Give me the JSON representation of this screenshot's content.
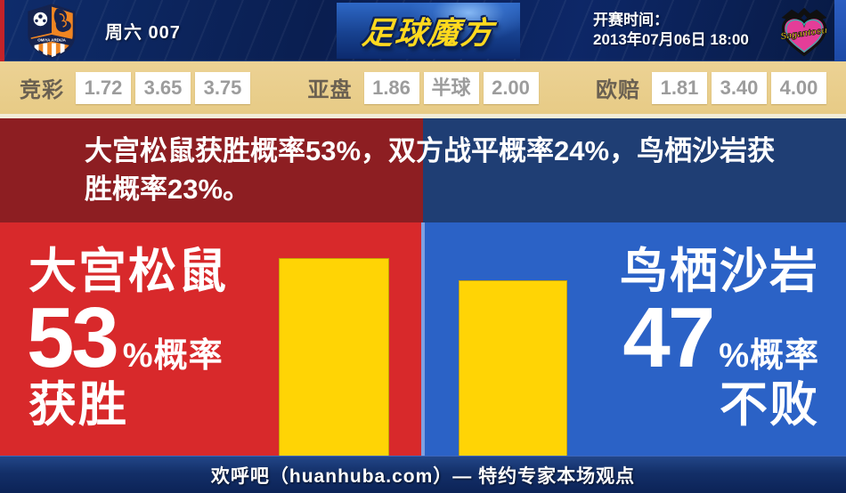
{
  "header": {
    "match_label": "周六 007",
    "site_logo": "足球魔方",
    "kickoff_label": "开赛时间：",
    "kickoff_time": "2013年07月06日 18:00",
    "home_team_crest": "omiya-ardija-crest",
    "away_team_crest": "sagan-tosu-crest",
    "away_crest_text": "Sagantosu",
    "home_crest_text": "OMIYA ARDIJA"
  },
  "odds": {
    "groups": [
      {
        "label": "竞彩",
        "values": [
          "1.72",
          "3.65",
          "3.75"
        ]
      },
      {
        "label": "亚盘",
        "values": [
          "1.86",
          "半球",
          "2.00"
        ]
      },
      {
        "label": "欧赔",
        "values": [
          "1.81",
          "3.40",
          "4.00"
        ]
      }
    ]
  },
  "summary": {
    "line1": "大宫松鼠获胜概率53%，双方战平概率24%，鸟栖沙岩获",
    "line2": "胜概率23%。",
    "full_text": "大宫松鼠获胜概率53%，双方战平概率24%，鸟栖沙岩获胜概率23%。"
  },
  "home": {
    "name": "大宫松鼠",
    "probability": "53",
    "suffix": "%概率",
    "outcome": "获胜"
  },
  "away": {
    "name": "鸟栖沙岩",
    "probability": "47",
    "suffix": "%概率",
    "outcome": "不败"
  },
  "footer": {
    "text": "欢呼吧（huanhuba.com）— 特约专家本场观点"
  },
  "chart_data": {
    "type": "bar",
    "categories": [
      "大宫松鼠",
      "鸟栖沙岩"
    ],
    "values": [
      53,
      47
    ],
    "unit": "%",
    "labels": [
      "获胜",
      "不败"
    ],
    "bar_color": "#ffd405"
  },
  "colors": {
    "header_navy": "#0a1e4e",
    "left_edge_red": "#c32329",
    "right_edge_blue": "#2c5ec2",
    "odds_tan": "#e8cc88",
    "odds_number_gray": "#9c9c9c",
    "dark_red": "#8d1e22",
    "dark_navy": "#1f3e74",
    "home_red": "#d8292b",
    "away_blue": "#2b62c6",
    "bar_yellow": "#ffd405",
    "logo_yellow": "#ffd91e",
    "footer_navy": "#132f68"
  }
}
